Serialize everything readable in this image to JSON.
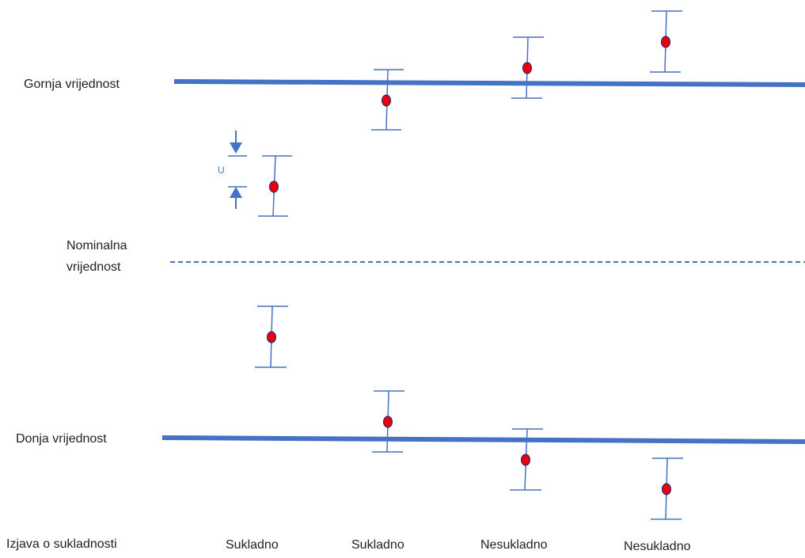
{
  "labels": {
    "upper": "Gornja vrijednost",
    "nominal_line1": "Nominalna",
    "nominal_line2": "vrijednost",
    "lower": "Donja vrijednost",
    "statement": "Izjava o sukladnosti",
    "uncertainty": "U"
  },
  "verdicts": [
    "Sukladno",
    "Sukladno",
    "Nesukladno",
    "Nesukladno"
  ],
  "colors": {
    "limit_line": "#4472c4",
    "error_bar": "#4472c4",
    "point": "#e8000d",
    "point_outline": "#1f1f6e"
  }
}
